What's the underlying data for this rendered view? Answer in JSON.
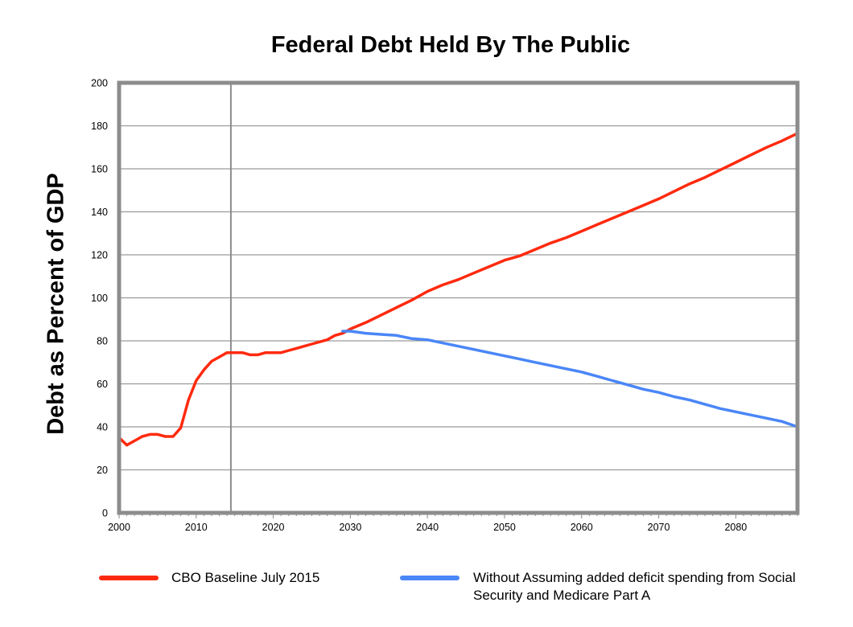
{
  "chart_data": {
    "type": "line",
    "title": "Federal Debt Held By The Public",
    "xlabel": "",
    "ylabel": "Debt as Percent of GDP",
    "xlim": [
      2000,
      2088
    ],
    "ylim": [
      0,
      200
    ],
    "xticks": [
      2000,
      2010,
      2020,
      2030,
      2040,
      2050,
      2060,
      2070,
      2080
    ],
    "yticks": [
      0,
      20,
      40,
      60,
      80,
      100,
      120,
      140,
      160,
      180,
      200
    ],
    "grid": true,
    "reference_line_x": 2014.5,
    "legend_position": "bottom",
    "series": [
      {
        "name": "CBO Baseline July 2015",
        "color": "#ff2a0e",
        "points": [
          [
            2000,
            35
          ],
          [
            2001,
            31.5
          ],
          [
            2002,
            33.5
          ],
          [
            2003,
            35.5
          ],
          [
            2004,
            36.5
          ],
          [
            2005,
            36.5
          ],
          [
            2006,
            35.5
          ],
          [
            2007,
            35.5
          ],
          [
            2008,
            39.5
          ],
          [
            2009,
            52.5
          ],
          [
            2010,
            61.5
          ],
          [
            2011,
            66.5
          ],
          [
            2012,
            70.5
          ],
          [
            2013,
            72.5
          ],
          [
            2014,
            74.5
          ],
          [
            2015,
            74.5
          ],
          [
            2016,
            74.5
          ],
          [
            2017,
            73.5
          ],
          [
            2018,
            73.5
          ],
          [
            2019,
            74.5
          ],
          [
            2020,
            74.5
          ],
          [
            2021,
            74.5
          ],
          [
            2022,
            75.5
          ],
          [
            2023,
            76.5
          ],
          [
            2024,
            77.5
          ],
          [
            2025,
            78.5
          ],
          [
            2026,
            79.5
          ],
          [
            2027,
            80.5
          ],
          [
            2028,
            82.5
          ],
          [
            2029,
            83.5
          ],
          [
            2030,
            85.5
          ],
          [
            2032,
            88.5
          ],
          [
            2034,
            92
          ],
          [
            2036,
            95.5
          ],
          [
            2038,
            99
          ],
          [
            2040,
            103
          ],
          [
            2042,
            106
          ],
          [
            2044,
            108.5
          ],
          [
            2046,
            111.5
          ],
          [
            2048,
            114.5
          ],
          [
            2050,
            117.5
          ],
          [
            2052,
            119.5
          ],
          [
            2054,
            122.5
          ],
          [
            2056,
            125.5
          ],
          [
            2058,
            128
          ],
          [
            2060,
            131
          ],
          [
            2062,
            134
          ],
          [
            2064,
            137
          ],
          [
            2066,
            140
          ],
          [
            2068,
            143
          ],
          [
            2070,
            146
          ],
          [
            2072,
            149.5
          ],
          [
            2074,
            153
          ],
          [
            2076,
            156
          ],
          [
            2078,
            159.5
          ],
          [
            2080,
            163
          ],
          [
            2082,
            166.5
          ],
          [
            2084,
            170
          ],
          [
            2086,
            173
          ],
          [
            2088,
            176.5
          ]
        ]
      },
      {
        "name": "Without  Assuming added deficit spending from Social Security and Medicare Part A",
        "color": "#4a86f7",
        "points": [
          [
            2029,
            84.5
          ],
          [
            2030,
            84.5
          ],
          [
            2032,
            83.5
          ],
          [
            2034,
            83
          ],
          [
            2036,
            82.5
          ],
          [
            2038,
            81
          ],
          [
            2040,
            80.5
          ],
          [
            2042,
            79
          ],
          [
            2044,
            77.5
          ],
          [
            2046,
            76
          ],
          [
            2048,
            74.5
          ],
          [
            2050,
            73
          ],
          [
            2052,
            71.5
          ],
          [
            2054,
            70
          ],
          [
            2056,
            68.5
          ],
          [
            2058,
            67
          ],
          [
            2060,
            65.5
          ],
          [
            2062,
            63.5
          ],
          [
            2064,
            61.5
          ],
          [
            2066,
            59.5
          ],
          [
            2068,
            57.5
          ],
          [
            2070,
            56
          ],
          [
            2072,
            54
          ],
          [
            2074,
            52.5
          ],
          [
            2076,
            50.5
          ],
          [
            2078,
            48.5
          ],
          [
            2080,
            47
          ],
          [
            2082,
            45.5
          ],
          [
            2084,
            44
          ],
          [
            2086,
            42.5
          ],
          [
            2088,
            40
          ]
        ]
      }
    ]
  },
  "legend": [
    {
      "label": "CBO Baseline July 2015",
      "color": "#ff2a0e"
    },
    {
      "label": "Without  Assuming added deficit spending from Social Security and Medicare Part A",
      "color": "#4a86f7"
    }
  ]
}
